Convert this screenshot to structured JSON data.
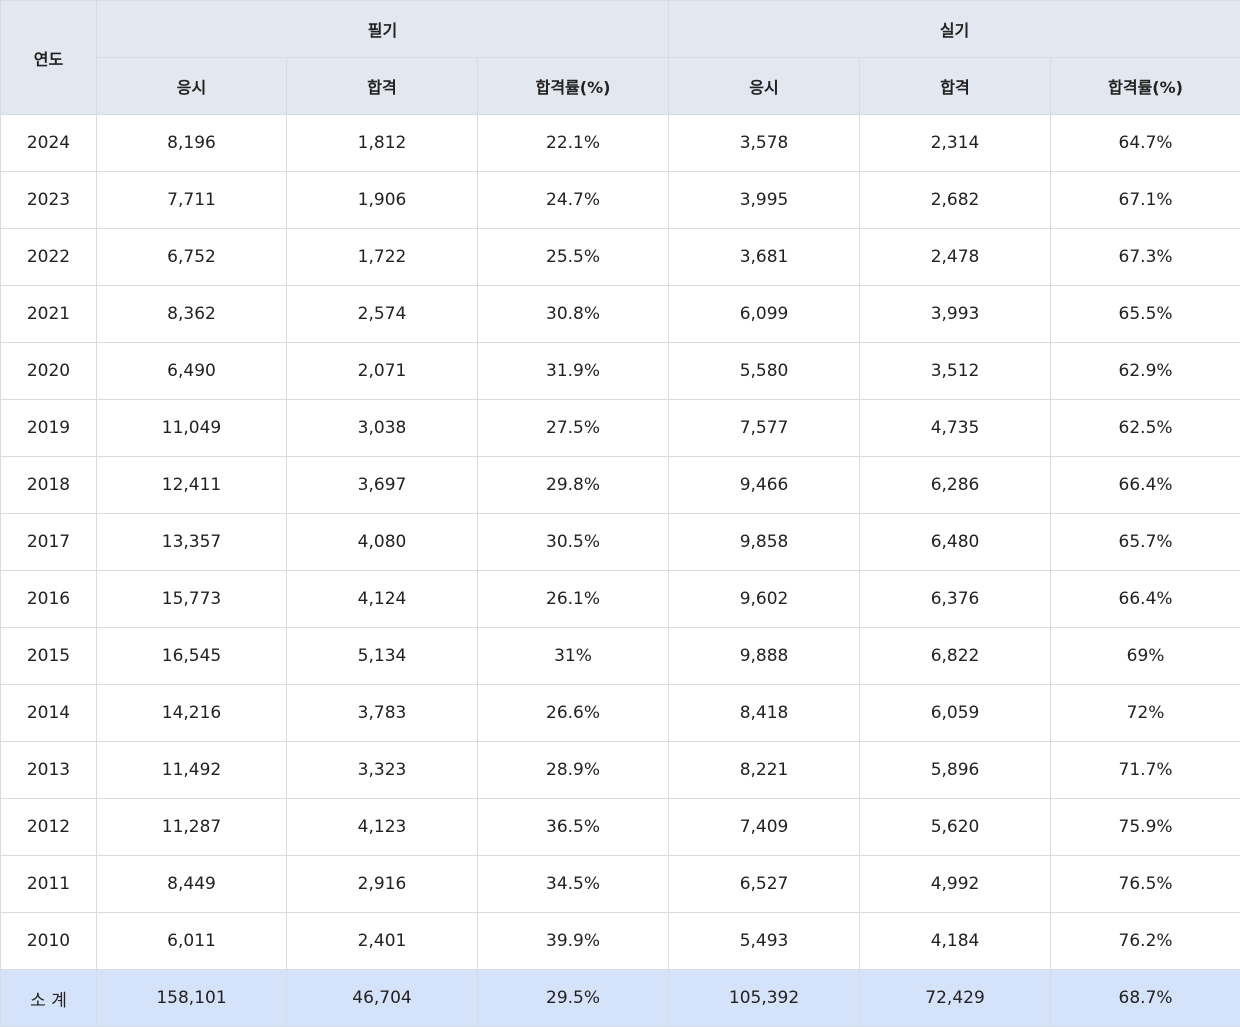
{
  "header": {
    "year": "연도",
    "written": "필기",
    "practical": "실기",
    "sub": [
      "응시",
      "합격",
      "합격률(%)",
      "응시",
      "합격",
      "합격률(%)"
    ]
  },
  "rows": [
    [
      "2024",
      "8,196",
      "1,812",
      "22.1%",
      "3,578",
      "2,314",
      "64.7%"
    ],
    [
      "2023",
      "7,711",
      "1,906",
      "24.7%",
      "3,995",
      "2,682",
      "67.1%"
    ],
    [
      "2022",
      "6,752",
      "1,722",
      "25.5%",
      "3,681",
      "2,478",
      "67.3%"
    ],
    [
      "2021",
      "8,362",
      "2,574",
      "30.8%",
      "6,099",
      "3,993",
      "65.5%"
    ],
    [
      "2020",
      "6,490",
      "2,071",
      "31.9%",
      "5,580",
      "3,512",
      "62.9%"
    ],
    [
      "2019",
      "11,049",
      "3,038",
      "27.5%",
      "7,577",
      "4,735",
      "62.5%"
    ],
    [
      "2018",
      "12,411",
      "3,697",
      "29.8%",
      "9,466",
      "6,286",
      "66.4%"
    ],
    [
      "2017",
      "13,357",
      "4,080",
      "30.5%",
      "9,858",
      "6,480",
      "65.7%"
    ],
    [
      "2016",
      "15,773",
      "4,124",
      "26.1%",
      "9,602",
      "6,376",
      "66.4%"
    ],
    [
      "2015",
      "16,545",
      "5,134",
      "31%",
      "9,888",
      "6,822",
      "69%"
    ],
    [
      "2014",
      "14,216",
      "3,783",
      "26.6%",
      "8,418",
      "6,059",
      "72%"
    ],
    [
      "2013",
      "11,492",
      "3,323",
      "28.9%",
      "8,221",
      "5,896",
      "71.7%"
    ],
    [
      "2012",
      "11,287",
      "4,123",
      "36.5%",
      "7,409",
      "5,620",
      "75.9%"
    ],
    [
      "2011",
      "8,449",
      "2,916",
      "34.5%",
      "6,527",
      "4,992",
      "76.5%"
    ],
    [
      "2010",
      "6,011",
      "2,401",
      "39.9%",
      "5,493",
      "4,184",
      "76.2%"
    ]
  ],
  "total": [
    "소 계",
    "158,101",
    "46,704",
    "29.5%",
    "105,392",
    "72,429",
    "68.7%"
  ]
}
